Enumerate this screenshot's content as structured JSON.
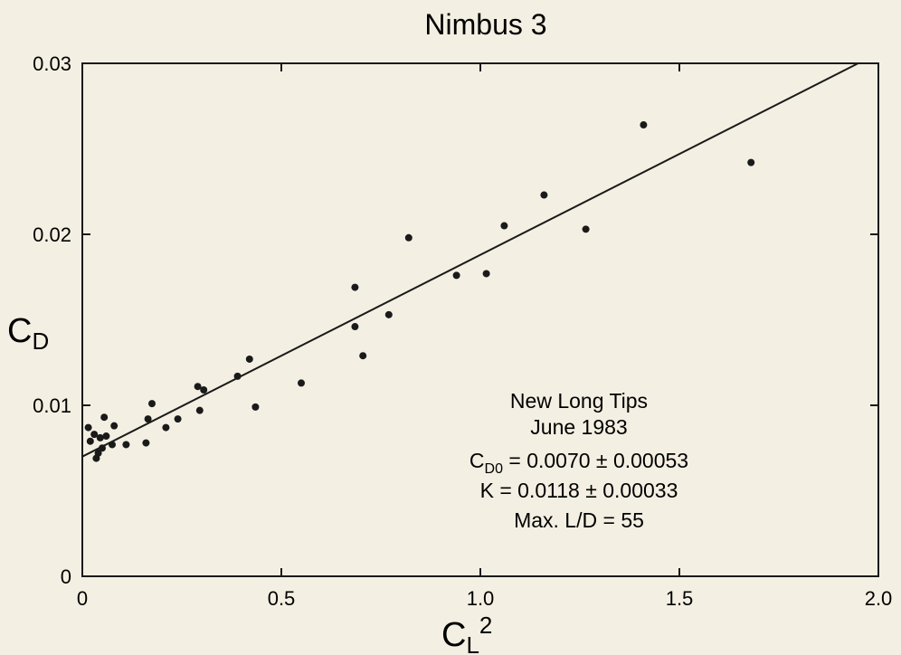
{
  "chart_data": {
    "type": "scatter",
    "title": "Nimbus 3",
    "xlabel": {
      "main": "C",
      "sub": "L",
      "sup": "2"
    },
    "ylabel": {
      "main": "C",
      "sub": "D"
    },
    "xlim": [
      0,
      2.0
    ],
    "ylim": [
      0,
      0.03
    ],
    "grid": false,
    "x_ticks": [
      0,
      0.5,
      1.0,
      1.5,
      2.0
    ],
    "x_tick_labels": [
      "0",
      "0.5",
      "1.0",
      "1.5",
      "2.0"
    ],
    "y_ticks": [
      0,
      0.01,
      0.02,
      0.03
    ],
    "y_tick_labels": [
      "0",
      "0.01",
      "0.02",
      "0.03"
    ],
    "series": [
      {
        "points": [
          [
            0.015,
            0.0087
          ],
          [
            0.02,
            0.0079
          ],
          [
            0.03,
            0.0083
          ],
          [
            0.035,
            0.0069
          ],
          [
            0.04,
            0.0072
          ],
          [
            0.045,
            0.0081
          ],
          [
            0.05,
            0.0075
          ],
          [
            0.055,
            0.0093
          ],
          [
            0.06,
            0.0082
          ],
          [
            0.075,
            0.0077
          ],
          [
            0.08,
            0.0088
          ],
          [
            0.11,
            0.0077
          ],
          [
            0.16,
            0.0078
          ],
          [
            0.165,
            0.0092
          ],
          [
            0.175,
            0.0101
          ],
          [
            0.21,
            0.0087
          ],
          [
            0.24,
            0.0092
          ],
          [
            0.29,
            0.0111
          ],
          [
            0.295,
            0.0097
          ],
          [
            0.305,
            0.0109
          ],
          [
            0.39,
            0.0117
          ],
          [
            0.42,
            0.0127
          ],
          [
            0.435,
            0.0099
          ],
          [
            0.55,
            0.0113
          ],
          [
            0.685,
            0.0169
          ],
          [
            0.685,
            0.0146
          ],
          [
            0.705,
            0.0129
          ],
          [
            0.77,
            0.0153
          ],
          [
            0.82,
            0.0198
          ],
          [
            0.94,
            0.0176
          ],
          [
            1.015,
            0.0177
          ],
          [
            1.06,
            0.0205
          ],
          [
            1.16,
            0.0223
          ],
          [
            1.265,
            0.0203
          ],
          [
            1.41,
            0.0264
          ],
          [
            1.68,
            0.0242
          ]
        ]
      }
    ],
    "fit_line": {
      "intercept": 0.007,
      "slope": 0.0118
    },
    "annotations": [
      {
        "main": "New Long Tips"
      },
      {
        "main": "June 1983"
      },
      {
        "pre": "C",
        "sub": "D0",
        "post": " = 0.0070 ± 0.00053"
      },
      {
        "main": "K = 0.0118 ± 0.00033"
      },
      {
        "main": "Max. L/D = 55"
      }
    ]
  }
}
